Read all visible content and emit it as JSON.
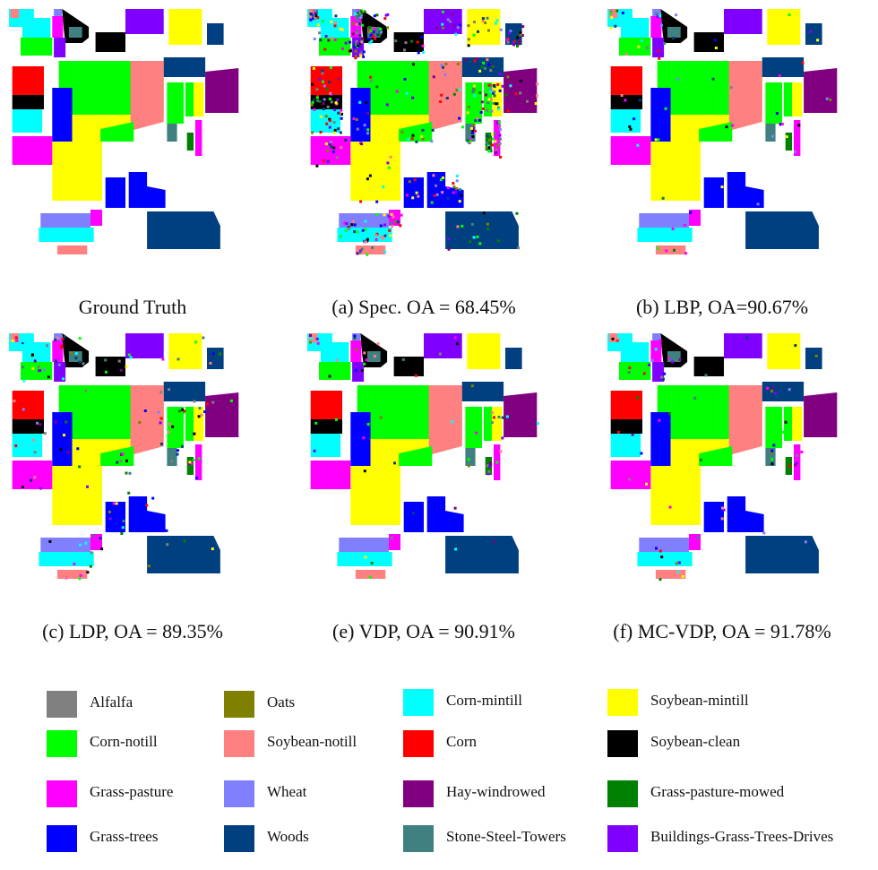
{
  "panels": [
    {
      "caption": "Ground Truth",
      "variant": "clean"
    },
    {
      "caption": "(a) Spec. OA = 68.45%",
      "variant": "very-noisy"
    },
    {
      "caption": "(b) LBP, OA=90.67%",
      "variant": "slightly-noisy"
    },
    {
      "caption": "(c) LDP, OA = 89.35%",
      "variant": "noisy"
    },
    {
      "caption": "(e) VDP, OA = 90.91%",
      "variant": "slightly-noisy"
    },
    {
      "caption": "(f) MC-VDP, OA = 91.78%",
      "variant": "slightly-noisy"
    }
  ],
  "classes": {
    "alfalfa": {
      "label": "Alfalfa",
      "color": "#808080"
    },
    "oats": {
      "label": "Oats",
      "color": "#808000"
    },
    "corn_mintill": {
      "label": "Corn-mintill",
      "color": "#00ffff"
    },
    "soybean_mintill": {
      "label": "Soybean-mintill",
      "color": "#ffff00"
    },
    "corn_notill": {
      "label": "Corn-notill",
      "color": "#00ff00"
    },
    "soybean_notill": {
      "label": "Soybean-notill",
      "color": "#ff8080"
    },
    "corn": {
      "label": "Corn",
      "color": "#ff0000"
    },
    "soybean_clean": {
      "label": "Soybean-clean",
      "color": "#000000"
    },
    "grass_pasture": {
      "label": "Grass-pasture",
      "color": "#ff00ff"
    },
    "wheat": {
      "label": "Wheat",
      "color": "#8080ff"
    },
    "hay_windrowed": {
      "label": "Hay-windrowed",
      "color": "#800080"
    },
    "grass_pasture_mowed": {
      "label": "Grass-pasture-mowed",
      "color": "#008000"
    },
    "grass_trees": {
      "label": "Grass-trees",
      "color": "#0000ff"
    },
    "woods": {
      "label": "Woods",
      "color": "#004080"
    },
    "stone_steel_towers": {
      "label": "Stone-Steel-Towers",
      "color": "#408080"
    },
    "buildings_grass_trees_drives": {
      "label": "Buildings-Grass-Trees-Drives",
      "color": "#8000ff"
    }
  },
  "legend_order": [
    "alfalfa",
    "oats",
    "corn_mintill",
    "soybean_mintill",
    "corn_notill",
    "soybean_notill",
    "corn",
    "soybean_clean",
    "grass_pasture",
    "wheat",
    "hay_windrowed",
    "grass_pasture_mowed",
    "grass_trees",
    "woods",
    "stone_steel_towers",
    "buildings_grass_trees_drives"
  ]
}
